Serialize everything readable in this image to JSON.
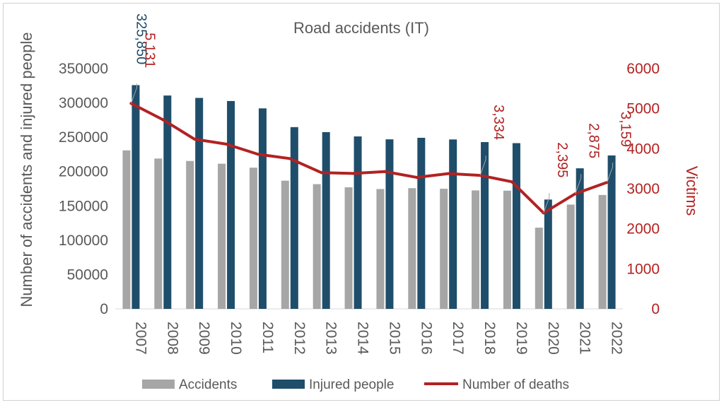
{
  "chart_data": {
    "type": "bar",
    "title": "Road accidents (IT)",
    "ylabel_left": "Number of accidents and injured people",
    "ylabel_right": "Victims",
    "categories": [
      "2007",
      "2008",
      "2009",
      "2010",
      "2011",
      "2012",
      "2013",
      "2014",
      "2015",
      "2016",
      "2017",
      "2018",
      "2019",
      "2020",
      "2021",
      "2022"
    ],
    "ylim_left": [
      0,
      350000
    ],
    "ylim_right": [
      0,
      6000
    ],
    "yticks_left": [
      "0",
      "50000",
      "100000",
      "150000",
      "200000",
      "250000",
      "300000",
      "350000"
    ],
    "yticks_right": [
      "0",
      "1000",
      "2000",
      "3000",
      "4000",
      "5000",
      "6000"
    ],
    "grid": false,
    "legend_position": "bottom",
    "series": [
      {
        "name": "Accidents",
        "kind": "bar",
        "axis": "left",
        "color": "#a6a6a6",
        "values": [
          230871,
          218963,
          215405,
          211404,
          205638,
          186726,
          181660,
          177031,
          174539,
          175791,
          174933,
          172553,
          172183,
          118298,
          151875,
          165889
        ]
      },
      {
        "name": "Injured people",
        "kind": "bar",
        "axis": "left",
        "color": "#1f4e6b",
        "values": [
          325850,
          310739,
          307258,
          302735,
          292019,
          264716,
          257421,
          251147,
          246920,
          249175,
          246750,
          242919,
          241384,
          159248,
          204728,
          223475
        ]
      },
      {
        "name": "Number of deaths",
        "kind": "line",
        "axis": "right",
        "color": "#b22222",
        "values": [
          5131,
          4725,
          4237,
          4114,
          3860,
          3753,
          3401,
          3381,
          3428,
          3283,
          3378,
          3334,
          3173,
          2395,
          2875,
          3159
        ]
      }
    ],
    "data_labels": [
      {
        "series": "Injured people",
        "index": 0,
        "text": "325,850"
      },
      {
        "series": "Number of deaths",
        "index": 0,
        "text": "5,131"
      },
      {
        "series": "Number of deaths",
        "index": 11,
        "text": "3,334"
      },
      {
        "series": "Number of deaths",
        "index": 13,
        "text": "2,395"
      },
      {
        "series": "Number of deaths",
        "index": 14,
        "text": "2,875"
      },
      {
        "series": "Number of deaths",
        "index": 15,
        "text": "3,159"
      }
    ],
    "colors": {
      "text": "#595959",
      "right_axis": "#b22222",
      "label_injured": "#1f4e6b"
    }
  }
}
